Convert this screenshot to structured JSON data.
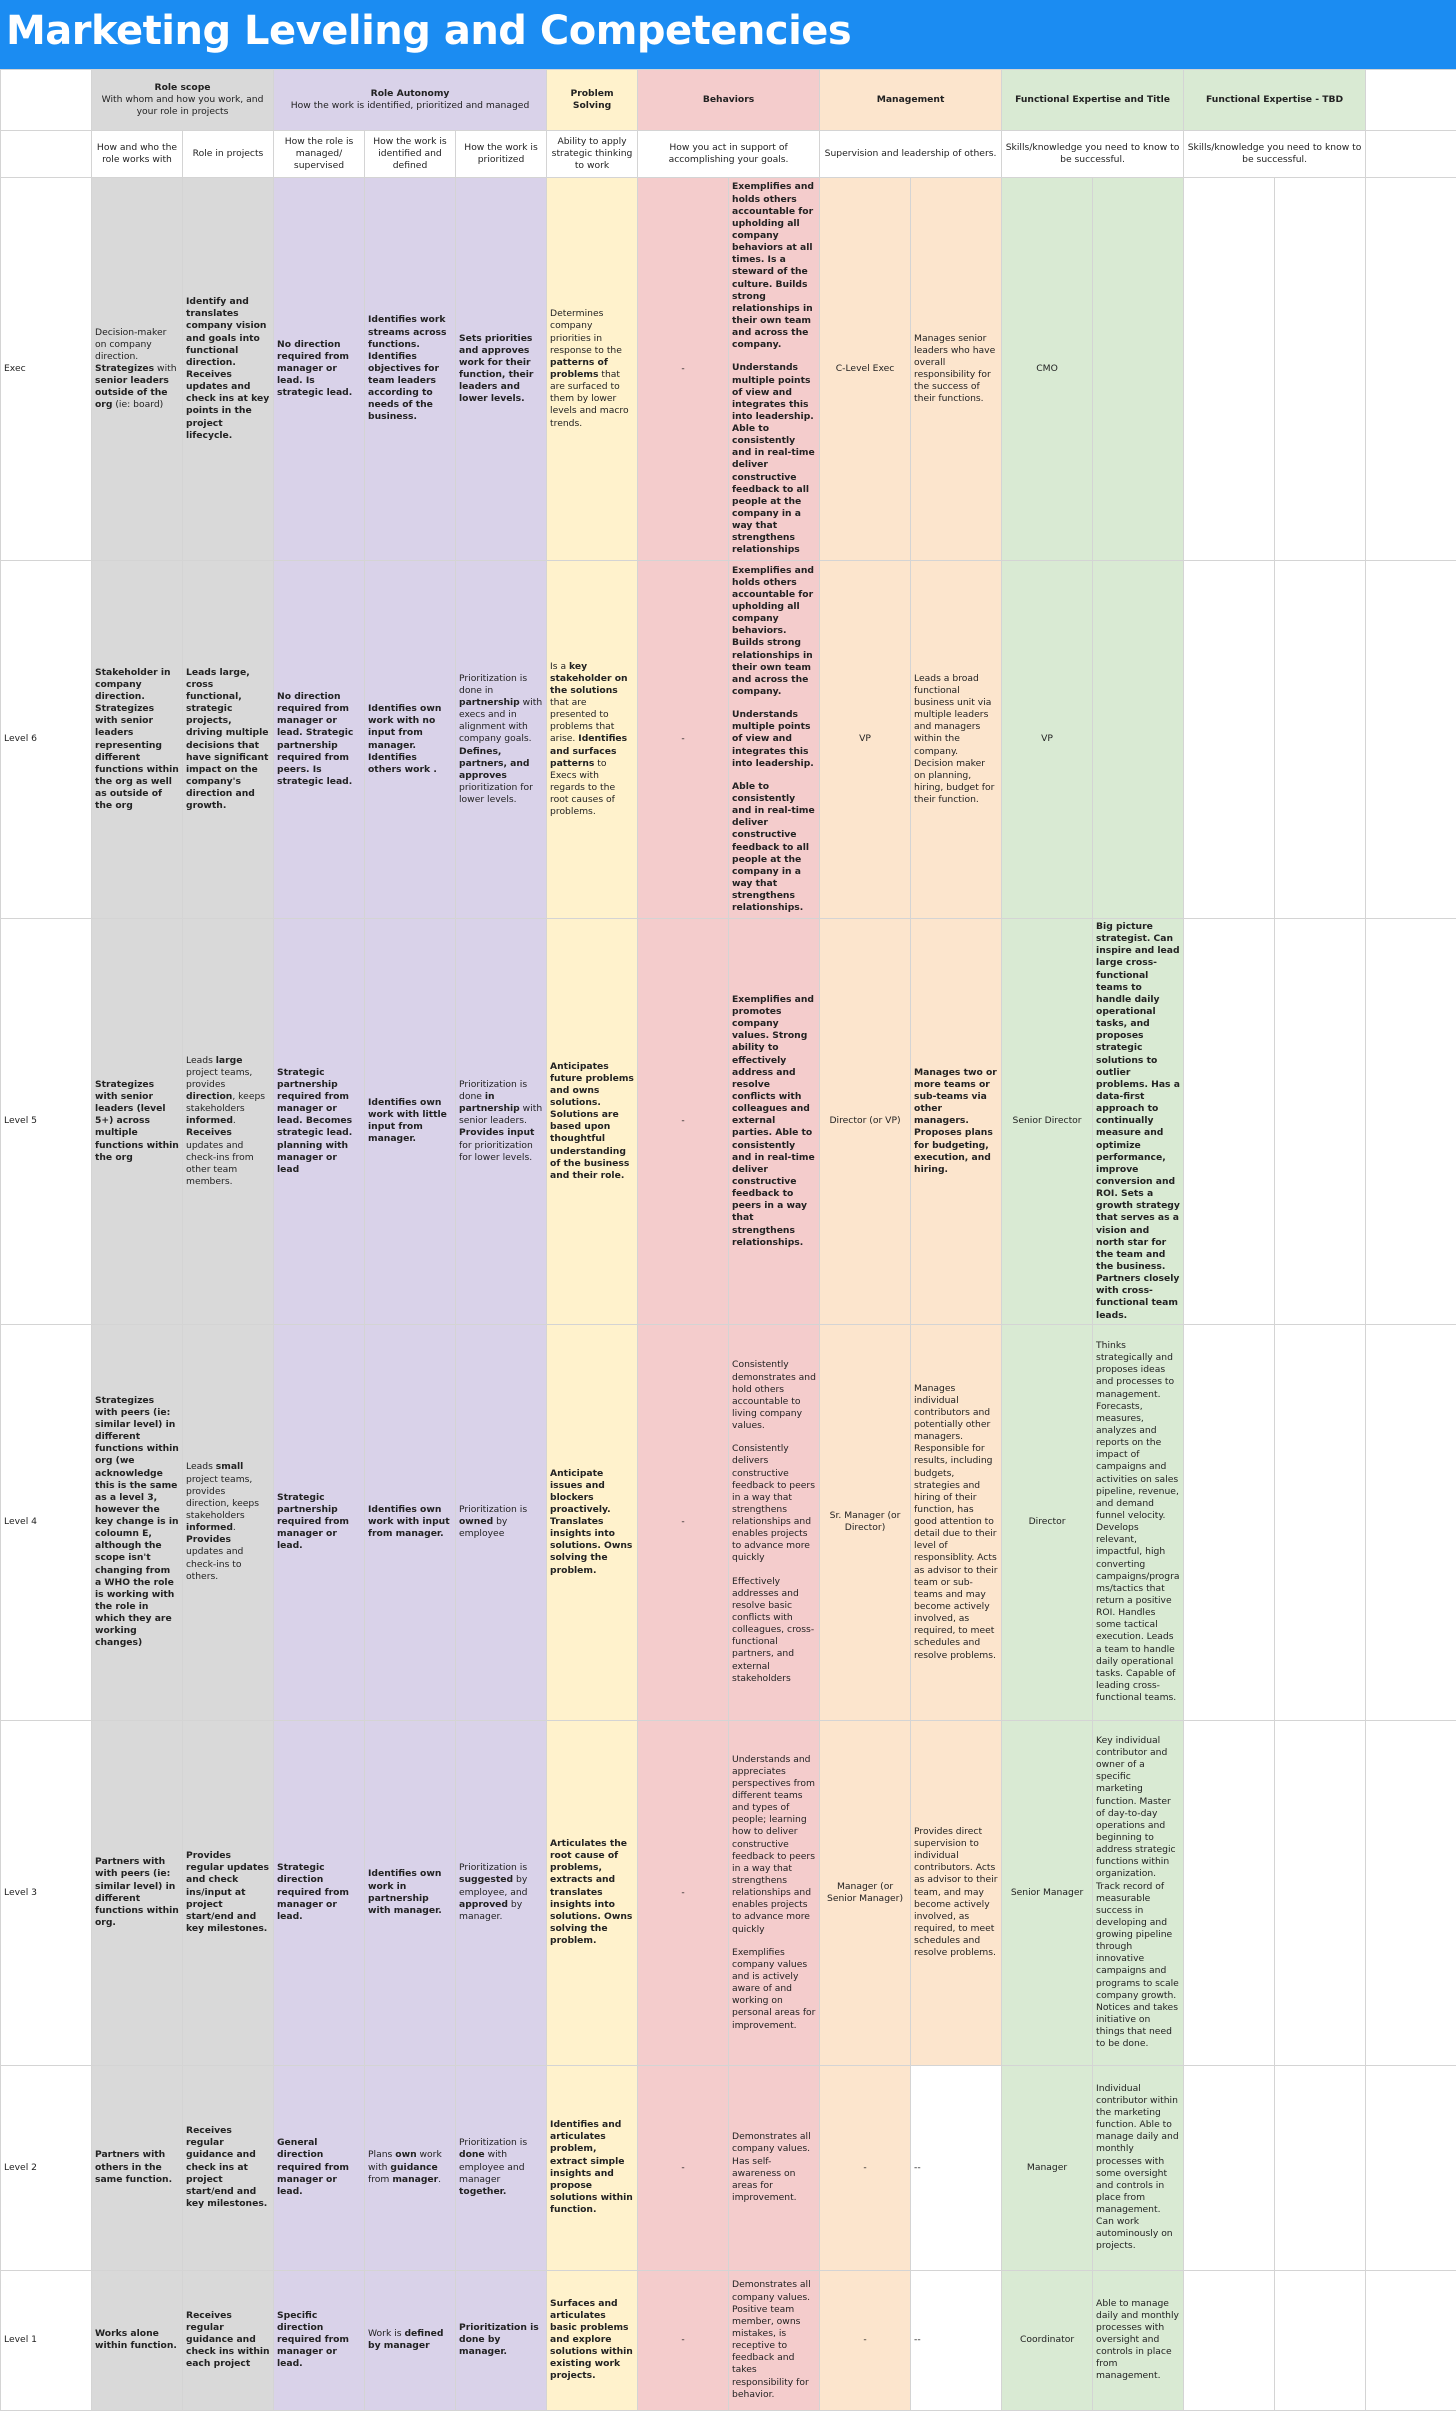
{
  "title": "Marketing Leveling and Competencies",
  "headers": {
    "role_scope": {
      "title": "Role scope",
      "sub": "With whom and how you work, and your role in projects"
    },
    "role_autonomy": {
      "title": "Role Autonomy",
      "sub": "How the work is identified, prioritized and managed"
    },
    "problem_solving": {
      "title": "Problem Solving"
    },
    "behaviors": {
      "title": "Behaviors"
    },
    "management": {
      "title": "Management"
    },
    "functional_title": {
      "title": "Functional Expertise and Title"
    },
    "functional_tbd": {
      "title": "Functional Expertise - TBD"
    }
  },
  "subheaders": {
    "with_whom": "How and who the role works with",
    "role_projects": "Role in projects",
    "managed": "How the role is managed/ supervised",
    "identified": "How the work is identified and defined",
    "prioritized": "How the work is prioritized",
    "problem_solving": "Ability to apply strategic thinking to work",
    "behaviors": "How you act in support of accomplishing your goals.",
    "management": "Supervision and leadership of others.",
    "functional_title": "Skills/knowledge you need to know to be successful.",
    "functional_tbd": "Skills/knowledge you need to know to be successful."
  },
  "levels": [
    {
      "label": "Exec",
      "with_whom": "Decision-maker on company direction. <b>Strategizes</b> with <b>senior leaders outside of the org</b> (ie: board)",
      "role_projects": "Identify and translates company vision and goals into functional direction. Receives updates and check ins at key points in the project lifecycle.",
      "managed": "No direction required from manager or lead. Is strategic lead.",
      "identified": "Identifies work streams across functions. Identifies objectives for team leaders according to needs of the business.",
      "prioritized": "Sets priorities and approves work for their function, their leaders and lower levels.",
      "problem_solving": "Determines company priorities in response to the <b>patterns of problems</b> that are surfaced to them by lower levels and macro trends.",
      "behaviors_a": "-",
      "behaviors_b": [
        "Exemplifies and holds others accountable for upholding all company behaviors at all times. Is a steward of the culture. Builds strong relationships in their own team and across the company.",
        "Understands multiple points of view and integrates this into leadership. Able to consistently and in real-time deliver constructive feedback to all people at the company in a way that strengthens relationships"
      ],
      "mgmt_title": "C-Level Exec",
      "mgmt_desc": "Manages senior leaders who have overall responsibility for the success of their functions.",
      "func_title": "CMO",
      "func_desc": ""
    },
    {
      "label": "Level 6",
      "with_whom": "Stakeholder in company direction. Strategizes with senior leaders representing different functions within the org as well as outside of the org",
      "role_projects": "Leads large, cross functional, strategic projects, driving multiple decisions that have significant impact on the company's direction and growth.",
      "managed": "No direction required from manager or lead. Strategic partnership required from peers. Is strategic lead.",
      "identified": "Identifies own work with no input from manager. Identifies others work .",
      "prioritized": "Prioritization is done in <b>partnership</b> with execs and in alignment with company goals. <b>Defines, partners, and approves</b> prioritization for lower levels.",
      "problem_solving": "Is a <b>key stakeholder on the solutions</b> that are presented to problems that arise. <b>Identifies and surfaces patterns</b> to Execs with regards to the root causes of problems.",
      "behaviors_a": "-",
      "behaviors_b": [
        "Exemplifies and holds others accountable for upholding all company behaviors. Builds strong relationships in their own team and across the company.",
        "Understands multiple points of view and integrates this into leadership.",
        "Able to consistently and in real-time deliver constructive feedback to all people at the company in a way that strengthens relationships."
      ],
      "mgmt_title": "VP",
      "mgmt_desc": "Leads a broad functional business unit via multiple leaders and managers within the company. Decision maker on planning, hiring, budget for their function.",
      "func_title": "VP",
      "func_desc": ""
    },
    {
      "label": "Level 5",
      "with_whom": "Strategizes with senior leaders (level 5+) across multiple functions within the org",
      "role_projects": "Leads <b>large</b> project teams, provides <b>direction</b>, keeps stakeholders <b>informed</b>. <b>Receives</b> updates and check-ins from other team members.",
      "managed": "Strategic partnership required from manager or lead. Becomes strategic lead. planning with manager or lead",
      "identified": "Identifies own work with little input from manager.",
      "prioritized": "Prioritization is done <b>in partnership</b> with senior leaders. <b>Provides input</b> for prioritization for lower levels.",
      "problem_solving": "Anticipates future problems and owns solutions. Solutions are based upon thoughtful understanding of the business and their role.",
      "behaviors_a": "-",
      "behaviors_b": [
        "Exemplifies and promotes company values. Strong ability to effectively address and resolve conflicts with colleagues and external parties. Able to consistently and in real-time deliver constructive feedback to peers in a way that strengthens relationships."
      ],
      "mgmt_title": "Director (or VP)",
      "mgmt_desc": "Manages two or more teams or sub-teams via other managers. Proposes plans for budgeting, execution, and hiring.",
      "func_title": "Senior Director",
      "func_desc": "Big picture strategist. Can inspire and lead large cross-functional teams to handle daily operational tasks, and proposes strategic solutions to outlier problems. Has a data-first approach to continually measure and optimize performance, improve conversion and ROI. Sets a growth strategy that serves as a vision and north star for the team and the business. Partners closely with cross-functional team leads."
    },
    {
      "label": "Level 4",
      "with_whom": "Strategizes with peers (ie: similar level) in different functions within org (we acknowledge this is the same as a level 3, however the key change is in coloumn E, although the scope isn't changing from a WHO the role is working with the role in which they are working changes)",
      "role_projects": "Leads <b>small</b> project teams, provides direction, keeps stakeholders <b>informed</b>. <b>Provides</b> updates and check-ins to others.",
      "managed": "Strategic partnership required from manager or lead.",
      "identified": "Identifies own work with input from manager.",
      "prioritized": "Prioritization is <b>owned</b> by employee",
      "problem_solving": "Anticipate issues and blockers proactively. Translates insights into solutions. Owns solving the problem.",
      "behaviors_a": "-",
      "behaviors_b": [
        "Consistently demonstrates and hold others accountable to living company values.",
        "Consistently delivers constructive feedback to peers in a way that strengthens relationships and enables projects to advance more quickly",
        "Effectively addresses and resolve basic conflicts with colleagues, cross-functional partners, and external stakeholders"
      ],
      "mgmt_title": "Sr. Manager (or Director)",
      "mgmt_desc": "Manages individual contributors and potentially other managers. Responsible for results, including budgets, strategies and hiring of their function, has good attention to detail due to their level of responsiblity. Acts as advisor to their team or sub-teams and may become actively involved, as required, to meet schedules and resolve problems.",
      "func_title": "Director",
      "func_desc": "Thinks strategically and proposes ideas and processes to management. Forecasts, measures, analyzes and reports on the impact of campaigns and activities on sales pipeline, revenue, and demand funnel velocity. Develops relevant, impactful, high converting campaigns/programs/tactics that return a positive ROI. Handles some tactical execution. Leads a team to handle daily operational tasks. Capable of leading cross-functional teams."
    },
    {
      "label": "Level 3",
      "with_whom": "Partners with with peers (ie: similar level) in different functions within org.",
      "role_projects": "Provides regular updates and check ins/input at project start/end and key milestones.",
      "managed": "Strategic direction required from manager or lead.",
      "identified": "Identifies own work in partnership with manager.",
      "prioritized": "Prioritization is <b>suggested</b> by employee, and <b>approved</b> by manager.",
      "problem_solving": "Articulates the root cause of problems, extracts and translates insights into solutions. Owns solving the problem.",
      "behaviors_a": "-",
      "behaviors_b": [
        "Understands and appreciates perspectives from different teams and types of people; learning how to deliver constructive feedback to peers in a way that strengthens relationships and enables projects to advance more quickly",
        "Exemplifies company values and is actively aware of and working on personal areas for improvement."
      ],
      "mgmt_title": "Manager (or Senior Manager)",
      "mgmt_desc": "Provides direct supervision to individual contributors. Acts as advisor to their team, and may become actively involved, as required, to meet schedules and resolve problems.",
      "func_title": "Senior Manager",
      "func_desc": "Key individual contributor and owner of a specific marketing function. Master of day-to-day operations and beginning to address strategic functions within organization. Track record of measurable success in developing and growing pipeline through innovative campaigns and programs to scale company growth. Notices and takes initiative on things that need to be done."
    },
    {
      "label": "Level 2",
      "with_whom": "Partners with others in the same function.",
      "role_projects": "Receives regular guidance and check ins at project start/end and key milestones.",
      "managed": "General direction required from manager or lead.",
      "identified": "Plans <b>own</b> work with <b>guidance</b> from <b>manager</b>.",
      "prioritized": "Prioritization is <b>done</b> with employee and manager <b>together.</b>",
      "problem_solving": "Identifies and articulates problem, extract simple insights and propose solutions within function.",
      "behaviors_a": "-",
      "behaviors_b": [
        "Demonstrates all company values. Has self-awareness on areas for improvement."
      ],
      "mgmt_title": "-",
      "mgmt_desc": "--",
      "func_title": "Manager",
      "func_desc": "Individual contributor within the marketing function. Able to manage daily and monthly processes with some oversight and controls in place from management. Can work autominously on projects."
    },
    {
      "label": "Level 1",
      "with_whom": "Works alone within function.",
      "role_projects": "Receives regular guidance and check ins within each project",
      "managed": "Specific direction required from manager or lead.",
      "identified": "Work is <b>defined by manager</b>",
      "prioritized": "<b>Prioritization is done by manager.</b>",
      "problem_solving": "Surfaces and articulates basic problems and explore solutions within existing work projects.",
      "behaviors_a": "-",
      "behaviors_b": [
        "Demonstrates all company values. Positive team member, owns mistakes, is receptive to feedback and takes responsibility for behavior."
      ],
      "mgmt_title": "-",
      "mgmt_desc": "--",
      "func_title": "Coordinator",
      "func_desc": "Able to manage daily and monthly processes with oversight and controls in place from management."
    }
  ],
  "colors": {
    "title_bar": "#1b8cf2",
    "role_scope": "#d9d9d9",
    "role_autonomy": "#d9d2e9",
    "problem_solving": "#fff2cc",
    "behaviors": "#f4cccc",
    "management": "#fce5cd",
    "functional": "#d9ead3"
  }
}
